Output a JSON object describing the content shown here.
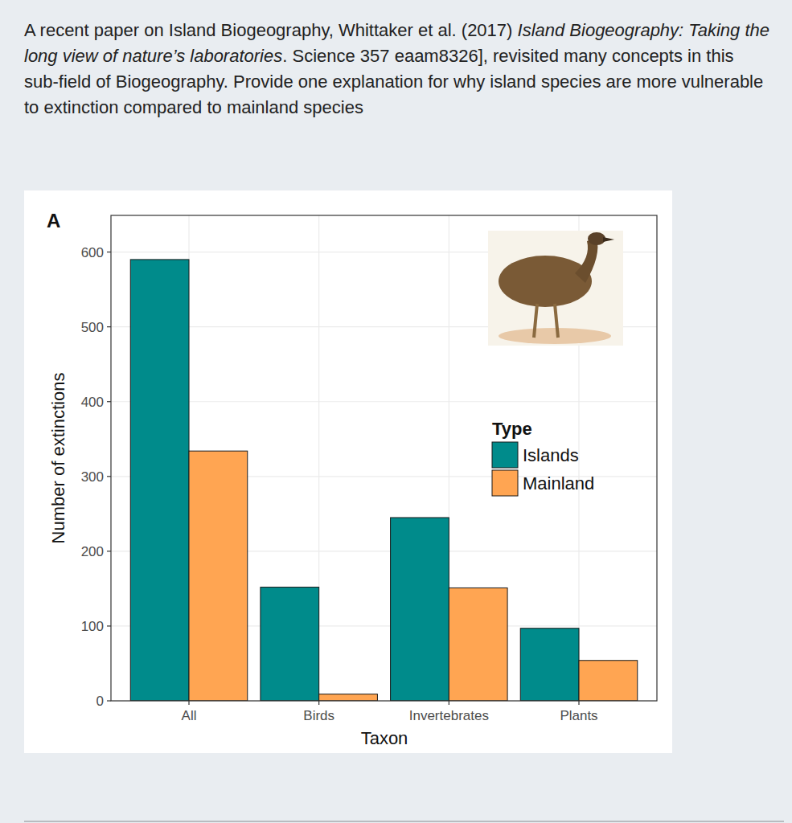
{
  "question": [
    "A recent paper on Island Biogeography, Whittaker et al. (2017) ",
    "Island Biogeography: Taking the long view of nature’s laboratories",
    ". Science 357 eaam8326], revisited many concepts in this sub-field of Biogeography. Provide one explanation for why island species are more vulnerable to extinction compared to mainland species"
  ],
  "chart_data": {
    "type": "bar",
    "panel_label": "A",
    "categories": [
      "All",
      "Birds",
      "Invertebrates",
      "Plants"
    ],
    "series": [
      {
        "name": "Islands",
        "color": "#008b8b",
        "values": [
          590,
          152,
          245,
          97
        ]
      },
      {
        "name": "Mainland",
        "color": "#ffa552",
        "values": [
          334,
          9,
          151,
          54
        ]
      }
    ],
    "x_label": "Taxon",
    "y_label": "Number of extinctions",
    "legend_title": "Type",
    "ylim": [
      0,
      649
    ],
    "yticks": [
      0,
      100,
      200,
      300,
      400,
      500,
      600
    ],
    "grid": true
  }
}
